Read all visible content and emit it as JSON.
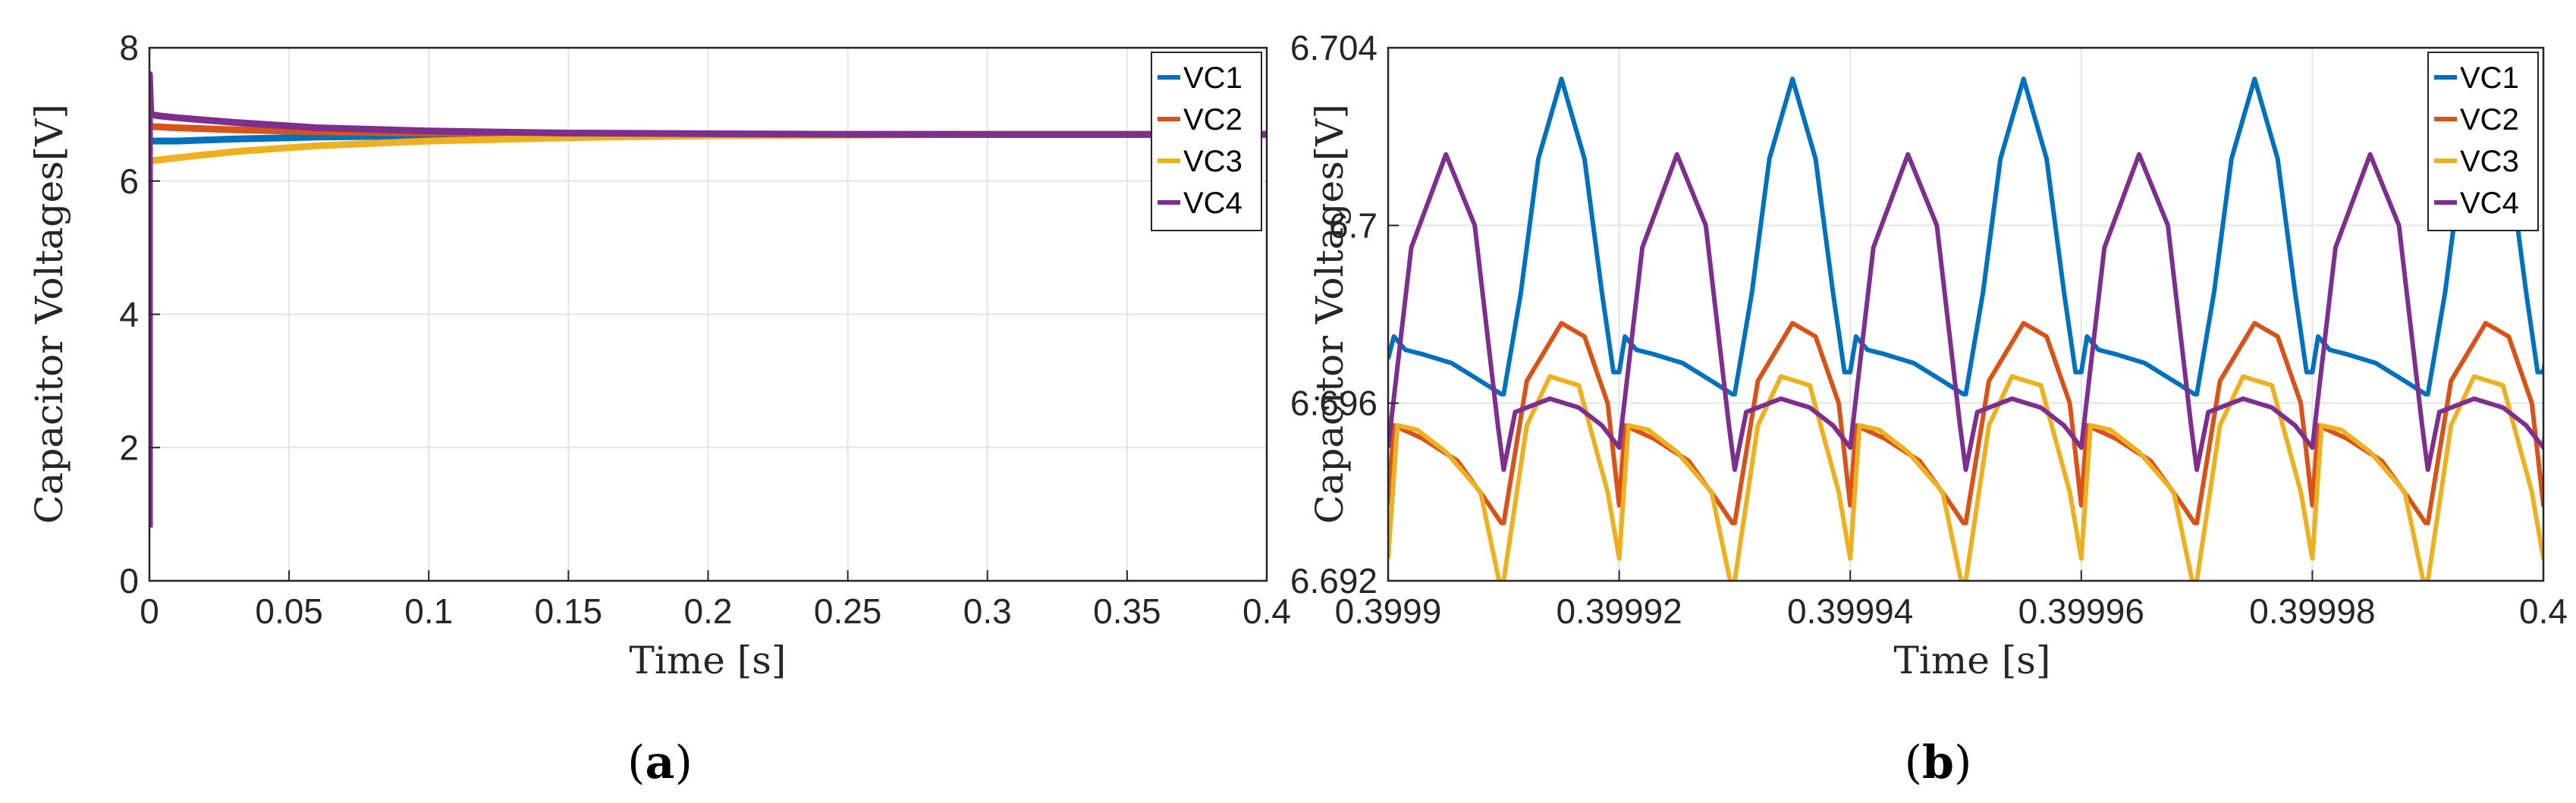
{
  "chart_data": [
    {
      "id": "a",
      "type": "line",
      "caption": "a",
      "xlabel": "Time [s]",
      "ylabel": "Capacitor Voltages[V]",
      "xlim": [
        0,
        0.4
      ],
      "ylim": [
        0,
        8
      ],
      "xticks": [
        0,
        0.05,
        0.1,
        0.15,
        0.2,
        0.25,
        0.3,
        0.35,
        0.4
      ],
      "xtick_labels": [
        "0",
        "0.05",
        "0.1",
        "0.15",
        "0.2",
        "0.25",
        "0.3",
        "0.35",
        "0.4"
      ],
      "yticks": [
        0,
        2,
        4,
        6,
        8
      ],
      "ytick_labels": [
        "0",
        "2",
        "4",
        "6",
        "8"
      ],
      "grid": true,
      "legend_position": "top-right",
      "series": [
        {
          "name": "VC1",
          "color": "#0072BD",
          "x": [
            0,
            0.01,
            0.03,
            0.06,
            0.1,
            0.15,
            0.2,
            0.25,
            0.3,
            0.35,
            0.4
          ],
          "y": [
            6.6,
            6.6,
            6.63,
            6.66,
            6.68,
            6.69,
            6.7,
            6.7,
            6.7,
            6.7,
            6.7
          ]
        },
        {
          "name": "VC2",
          "color": "#D95319",
          "x": [
            0,
            0.01,
            0.03,
            0.06,
            0.1,
            0.15,
            0.2,
            0.25,
            0.3,
            0.35,
            0.4
          ],
          "y": [
            6.82,
            6.8,
            6.77,
            6.74,
            6.72,
            6.71,
            6.7,
            6.7,
            6.7,
            6.7,
            6.7
          ]
        },
        {
          "name": "VC3",
          "color": "#EDB120",
          "x": [
            0,
            0.01,
            0.03,
            0.06,
            0.1,
            0.15,
            0.2,
            0.25,
            0.3,
            0.35,
            0.4
          ],
          "y": [
            6.3,
            6.35,
            6.44,
            6.53,
            6.6,
            6.65,
            6.68,
            6.69,
            6.7,
            6.7,
            6.7
          ]
        },
        {
          "name": "VC4",
          "color": "#7E2F8E",
          "x": [
            0,
            0,
            0.0005,
            0.003,
            0.01,
            0.03,
            0.06,
            0.1,
            0.15,
            0.2,
            0.25,
            0.3,
            0.35,
            0.4
          ],
          "y": [
            0.8,
            7.6,
            7.0,
            6.98,
            6.95,
            6.88,
            6.8,
            6.75,
            6.72,
            6.71,
            6.7,
            6.7,
            6.7,
            6.7
          ]
        }
      ]
    },
    {
      "id": "b",
      "type": "line",
      "caption": "b",
      "xlabel": "Time [s]",
      "ylabel": "Capacitor Voltages[V]",
      "xlim": [
        0.3999,
        0.4
      ],
      "ylim": [
        6.692,
        6.704
      ],
      "xticks": [
        0.3999,
        0.39992,
        0.39994,
        0.39996,
        0.39998,
        0.4
      ],
      "xtick_labels": [
        "0.3999",
        "0.39992",
        "0.39994",
        "0.39996",
        "0.39998",
        "0.4"
      ],
      "yticks": [
        6.692,
        6.696,
        6.7,
        6.704
      ],
      "ytick_labels": [
        "6.692",
        "6.696",
        "6.7",
        "6.704"
      ],
      "grid": true,
      "legend_position": "top-right",
      "period": 2e-05,
      "series": [
        {
          "name": "VC1",
          "color": "#0072BD",
          "x": [
            0.3999,
            0.3999005,
            0.3999015,
            0.399903,
            0.3999055,
            0.399908,
            0.3999098,
            0.39991,
            0.3999115,
            0.399913,
            0.399915,
            0.399917,
            0.3999185,
            0.3999195,
            0.39992
          ],
          "y": [
            6.697,
            6.6975,
            6.6972,
            6.6971,
            6.6969,
            6.6965,
            6.6962,
            6.6962,
            6.6985,
            6.7015,
            6.7033,
            6.7015,
            6.6985,
            6.6967,
            6.6967
          ]
        },
        {
          "name": "VC2",
          "color": "#D95319",
          "x": [
            0.3999,
            0.3999005,
            0.399903,
            0.399906,
            0.3999085,
            0.3999098,
            0.39991,
            0.399912,
            0.399915,
            0.399917,
            0.399919,
            0.39992
          ],
          "y": [
            6.6937,
            6.6955,
            6.6952,
            6.6947,
            6.6938,
            6.6933,
            6.6933,
            6.6965,
            6.6978,
            6.6975,
            6.696,
            6.6937
          ]
        },
        {
          "name": "VC3",
          "color": "#EDB120",
          "x": [
            0.3999,
            0.3999008,
            0.3999025,
            0.399905,
            0.399908,
            0.3999096,
            0.39991,
            0.399912,
            0.399914,
            0.3999165,
            0.399919,
            0.39992
          ],
          "y": [
            6.6925,
            6.6955,
            6.6954,
            6.6949,
            6.694,
            6.692,
            6.692,
            6.6955,
            6.6966,
            6.6964,
            6.694,
            6.6925
          ]
        },
        {
          "name": "VC4",
          "color": "#7E2F8E",
          "x": [
            0.3999,
            0.399902,
            0.399905,
            0.3999075,
            0.3999095,
            0.39991,
            0.399911,
            0.399914,
            0.3999165,
            0.3999185,
            0.39992
          ],
          "y": [
            6.695,
            6.6995,
            6.7016,
            6.7,
            6.6955,
            6.6945,
            6.6958,
            6.6961,
            6.6959,
            6.6955,
            6.695
          ]
        }
      ]
    }
  ]
}
